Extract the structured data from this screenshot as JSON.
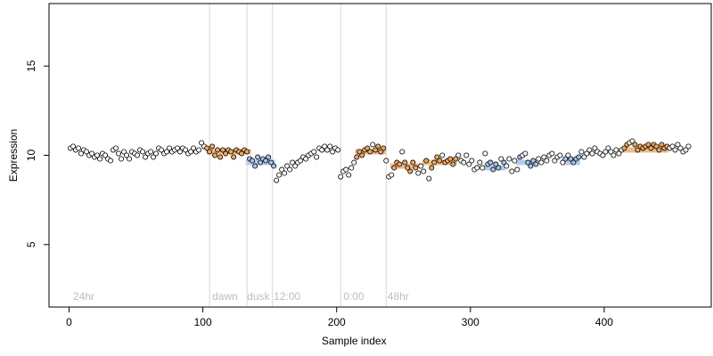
{
  "chart_data": {
    "type": "scatter",
    "title": "",
    "xlabel": "Sample index",
    "ylabel": "Expression",
    "xlim": [
      -15,
      480
    ],
    "ylim": [
      1.5,
      18.5
    ],
    "x_ticks": [
      0,
      100,
      200,
      300,
      400
    ],
    "y_ticks": [
      5,
      10,
      15
    ],
    "grid": false,
    "segment_dividers": [
      105,
      133,
      152,
      203,
      237
    ],
    "annotations": [
      {
        "label": "24hr",
        "x": 3
      },
      {
        "label": "dawn",
        "x": 107
      },
      {
        "label": "dusk",
        "x": 133
      },
      {
        "label": "12:00",
        "x": 153
      },
      {
        "label": "0:00",
        "x": 205
      },
      {
        "label": "48hr",
        "x": 238
      }
    ],
    "colors": {
      "point_default": "#ffffff",
      "point_warm": "#f0a860",
      "point_cool": "#a8c4f0",
      "band_warm": "#e8b078",
      "band_cool": "#a8c4e8",
      "divider": "#d9d9d9",
      "annotation": "#bdbdbd"
    },
    "bands": [
      {
        "x0": 103,
        "x1": 136,
        "y": 10.2,
        "color": "band_warm"
      },
      {
        "x0": 132,
        "x1": 154,
        "y": 9.6,
        "color": "band_cool"
      },
      {
        "x0": 214,
        "x1": 237,
        "y": 10.2,
        "color": "band_warm"
      },
      {
        "x0": 240,
        "x1": 262,
        "y": 9.4,
        "color": "band_warm"
      },
      {
        "x0": 264,
        "x1": 290,
        "y": 9.6,
        "color": "band_warm"
      },
      {
        "x0": 310,
        "x1": 326,
        "y": 9.3,
        "color": "band_cool"
      },
      {
        "x0": 334,
        "x1": 350,
        "y": 9.6,
        "color": "band_cool"
      },
      {
        "x0": 370,
        "x1": 382,
        "y": 9.6,
        "color": "band_cool"
      },
      {
        "x0": 414,
        "x1": 448,
        "y": 10.3,
        "color": "band_warm"
      }
    ],
    "points": [
      [
        1,
        10.4
      ],
      [
        3,
        10.5
      ],
      [
        5,
        10.3
      ],
      [
        7,
        10.4
      ],
      [
        9,
        10.1
      ],
      [
        11,
        10.3
      ],
      [
        13,
        10.2
      ],
      [
        15,
        10.0
      ],
      [
        17,
        10.1
      ],
      [
        19,
        9.9
      ],
      [
        21,
        10.0
      ],
      [
        23,
        9.8
      ],
      [
        25,
        10.1
      ],
      [
        27,
        10.0
      ],
      [
        29,
        9.8
      ],
      [
        31,
        9.7
      ],
      [
        33,
        10.3
      ],
      [
        35,
        10.4
      ],
      [
        37,
        10.1
      ],
      [
        39,
        9.8
      ],
      [
        41,
        10.2
      ],
      [
        43,
        10.0
      ],
      [
        45,
        9.8
      ],
      [
        47,
        10.2
      ],
      [
        49,
        10.1
      ],
      [
        51,
        10.0
      ],
      [
        53,
        10.3
      ],
      [
        55,
        10.2
      ],
      [
        57,
        9.9
      ],
      [
        59,
        10.1
      ],
      [
        61,
        10.2
      ],
      [
        63,
        9.9
      ],
      [
        65,
        10.1
      ],
      [
        67,
        10.4
      ],
      [
        69,
        10.3
      ],
      [
        71,
        10.1
      ],
      [
        73,
        10.2
      ],
      [
        75,
        10.4
      ],
      [
        77,
        10.2
      ],
      [
        79,
        10.3
      ],
      [
        81,
        10.4
      ],
      [
        83,
        10.2
      ],
      [
        85,
        10.4
      ],
      [
        87,
        10.3
      ],
      [
        89,
        10.1
      ],
      [
        91,
        10.2
      ],
      [
        93,
        10.4
      ],
      [
        95,
        10.2
      ],
      [
        97,
        10.3
      ],
      [
        99,
        10.7
      ],
      [
        101,
        10.5
      ],
      [
        103,
        10.4
      ],
      [
        105,
        10.2
      ],
      [
        107,
        10.5
      ],
      [
        109,
        10.0
      ],
      [
        111,
        10.3
      ],
      [
        113,
        9.9
      ],
      [
        115,
        10.3
      ],
      [
        117,
        10.1
      ],
      [
        119,
        10.3
      ],
      [
        121,
        10.2
      ],
      [
        123,
        9.9
      ],
      [
        125,
        10.3
      ],
      [
        127,
        10.2
      ],
      [
        129,
        10.1
      ],
      [
        131,
        10.3
      ],
      [
        133,
        10.2
      ],
      [
        135,
        9.8
      ],
      [
        137,
        9.7
      ],
      [
        139,
        9.4
      ],
      [
        141,
        9.9
      ],
      [
        143,
        9.6
      ],
      [
        145,
        9.8
      ],
      [
        147,
        9.7
      ],
      [
        149,
        9.9
      ],
      [
        151,
        9.6
      ],
      [
        153,
        9.4
      ],
      [
        155,
        8.6
      ],
      [
        157,
        8.9
      ],
      [
        159,
        9.2
      ],
      [
        161,
        9.0
      ],
      [
        163,
        9.4
      ],
      [
        165,
        9.2
      ],
      [
        167,
        9.6
      ],
      [
        169,
        9.4
      ],
      [
        171,
        9.6
      ],
      [
        173,
        9.7
      ],
      [
        175,
        9.9
      ],
      [
        177,
        9.8
      ],
      [
        179,
        10.0
      ],
      [
        181,
        10.1
      ],
      [
        183,
        10.2
      ],
      [
        185,
        9.9
      ],
      [
        187,
        10.4
      ],
      [
        189,
        10.3
      ],
      [
        191,
        10.5
      ],
      [
        193,
        10.3
      ],
      [
        195,
        10.5
      ],
      [
        197,
        10.2
      ],
      [
        199,
        10.4
      ],
      [
        201,
        10.3
      ],
      [
        203,
        8.8
      ],
      [
        205,
        9.1
      ],
      [
        207,
        9.2
      ],
      [
        209,
        8.9
      ],
      [
        211,
        9.3
      ],
      [
        213,
        9.6
      ],
      [
        215,
        9.9
      ],
      [
        217,
        10.2
      ],
      [
        219,
        10.0
      ],
      [
        221,
        10.3
      ],
      [
        223,
        10.4
      ],
      [
        225,
        10.2
      ],
      [
        227,
        10.6
      ],
      [
        229,
        10.3
      ],
      [
        231,
        10.5
      ],
      [
        233,
        10.2
      ],
      [
        235,
        10.4
      ],
      [
        237,
        9.7
      ],
      [
        239,
        8.8
      ],
      [
        241,
        8.9
      ],
      [
        243,
        9.3
      ],
      [
        245,
        9.6
      ],
      [
        247,
        9.5
      ],
      [
        249,
        10.2
      ],
      [
        251,
        9.6
      ],
      [
        253,
        9.3
      ],
      [
        255,
        9.1
      ],
      [
        257,
        9.6
      ],
      [
        259,
        9.3
      ],
      [
        261,
        9.0
      ],
      [
        263,
        9.4
      ],
      [
        265,
        9.1
      ],
      [
        267,
        9.7
      ],
      [
        269,
        8.7
      ],
      [
        271,
        9.3
      ],
      [
        273,
        9.6
      ],
      [
        275,
        9.9
      ],
      [
        277,
        9.7
      ],
      [
        279,
        10.0
      ],
      [
        281,
        9.6
      ],
      [
        283,
        9.7
      ],
      [
        285,
        9.8
      ],
      [
        287,
        9.5
      ],
      [
        289,
        9.8
      ],
      [
        291,
        10.0
      ],
      [
        293,
        9.7
      ],
      [
        295,
        9.6
      ],
      [
        297,
        10.0
      ],
      [
        299,
        9.5
      ],
      [
        301,
        9.7
      ],
      [
        303,
        9.2
      ],
      [
        305,
        9.3
      ],
      [
        307,
        9.6
      ],
      [
        309,
        9.3
      ],
      [
        311,
        10.1
      ],
      [
        313,
        9.5
      ],
      [
        315,
        9.6
      ],
      [
        317,
        9.2
      ],
      [
        319,
        9.5
      ],
      [
        321,
        9.3
      ],
      [
        323,
        9.8
      ],
      [
        325,
        9.6
      ],
      [
        327,
        9.4
      ],
      [
        329,
        9.8
      ],
      [
        331,
        9.1
      ],
      [
        333,
        9.7
      ],
      [
        335,
        9.2
      ],
      [
        337,
        9.9
      ],
      [
        339,
        10.0
      ],
      [
        341,
        10.1
      ],
      [
        343,
        9.6
      ],
      [
        345,
        9.4
      ],
      [
        347,
        9.7
      ],
      [
        349,
        9.5
      ],
      [
        351,
        9.8
      ],
      [
        353,
        9.6
      ],
      [
        355,
        9.9
      ],
      [
        357,
        9.7
      ],
      [
        359,
        10.0
      ],
      [
        361,
        10.1
      ],
      [
        363,
        9.7
      ],
      [
        365,
        9.9
      ],
      [
        367,
        10.0
      ],
      [
        369,
        9.6
      ],
      [
        371,
        9.8
      ],
      [
        373,
        10.0
      ],
      [
        375,
        9.8
      ],
      [
        377,
        9.6
      ],
      [
        379,
        9.8
      ],
      [
        381,
        9.9
      ],
      [
        383,
        10.2
      ],
      [
        385,
        9.9
      ],
      [
        387,
        10.1
      ],
      [
        389,
        10.3
      ],
      [
        391,
        10.1
      ],
      [
        393,
        10.4
      ],
      [
        395,
        10.2
      ],
      [
        397,
        10.1
      ],
      [
        399,
        10.0
      ],
      [
        401,
        10.2
      ],
      [
        403,
        10.4
      ],
      [
        405,
        10.2
      ],
      [
        407,
        10.0
      ],
      [
        409,
        10.3
      ],
      [
        411,
        10.1
      ],
      [
        413,
        10.3
      ],
      [
        415,
        10.4
      ],
      [
        417,
        10.6
      ],
      [
        419,
        10.7
      ],
      [
        421,
        10.8
      ],
      [
        423,
        10.6
      ],
      [
        425,
        10.3
      ],
      [
        427,
        10.5
      ],
      [
        429,
        10.4
      ],
      [
        431,
        10.5
      ],
      [
        433,
        10.6
      ],
      [
        435,
        10.4
      ],
      [
        437,
        10.6
      ],
      [
        439,
        10.5
      ],
      [
        441,
        10.3
      ],
      [
        443,
        10.6
      ],
      [
        445,
        10.4
      ],
      [
        447,
        10.5
      ],
      [
        449,
        10.4
      ],
      [
        451,
        10.5
      ],
      [
        453,
        10.3
      ],
      [
        455,
        10.6
      ],
      [
        457,
        10.4
      ],
      [
        459,
        10.2
      ],
      [
        461,
        10.3
      ],
      [
        463,
        10.5
      ]
    ]
  }
}
